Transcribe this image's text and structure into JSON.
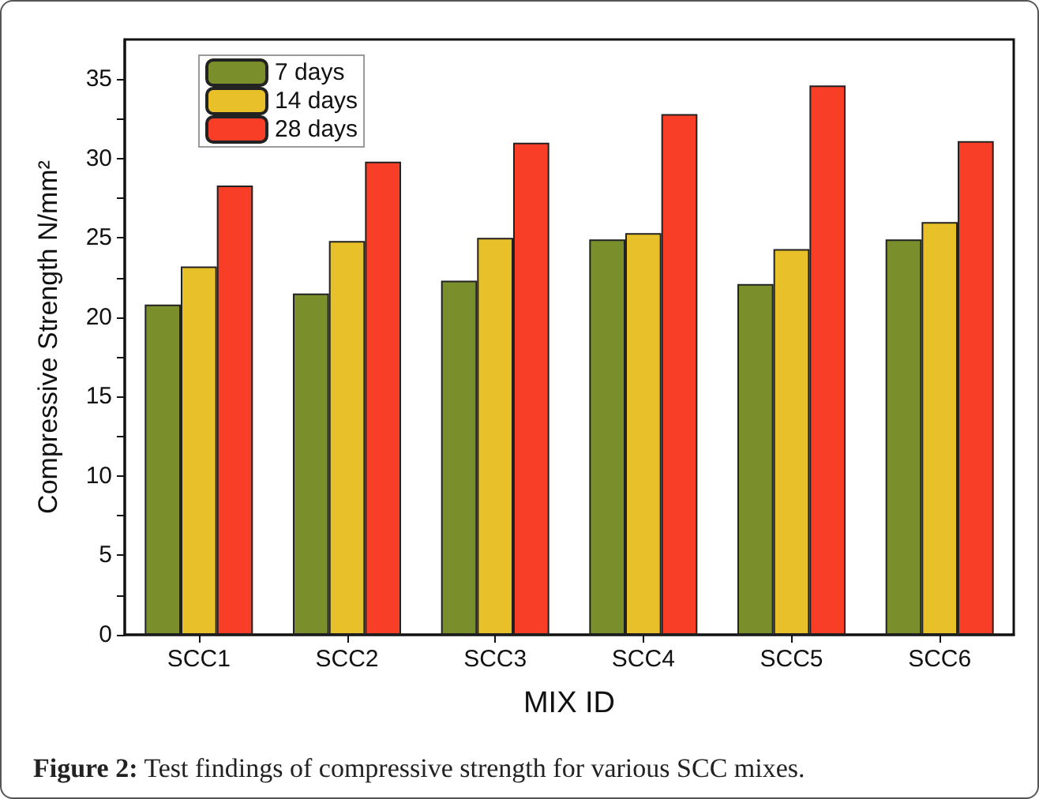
{
  "chart_data": {
    "type": "bar",
    "xlabel": "MIX ID",
    "ylabel": "Compressive Strength N/mm²",
    "categories": [
      "SCC1",
      "SCC2",
      "SCC3",
      "SCC4",
      "SCC5",
      "SCC6"
    ],
    "series": [
      {
        "name": "7 days",
        "color": "#7a8f2b",
        "values": [
          20.8,
          21.5,
          22.3,
          24.9,
          22.1,
          24.9
        ]
      },
      {
        "name": "14 days",
        "color": "#e8c02a",
        "values": [
          23.2,
          24.8,
          25.0,
          25.3,
          24.3,
          26.0
        ]
      },
      {
        "name": "28 days",
        "color": "#f93e27",
        "values": [
          28.3,
          29.8,
          31.0,
          32.8,
          34.6,
          31.1
        ]
      }
    ],
    "ylim": [
      0,
      37.5
    ],
    "yticks": [
      0,
      {
        "value": 2.5,
        "label": null
      },
      5,
      {
        "value": 7.5,
        "label": null
      },
      10,
      {
        "value": 12.5,
        "label": null
      },
      15,
      {
        "value": 17.5,
        "label": null
      },
      20,
      {
        "value": 22.5,
        "label": null
      },
      25,
      {
        "value": 27.5,
        "label": null
      },
      30,
      {
        "value": 32.5,
        "label": null
      },
      35
    ],
    "grid": false,
    "legend": "top left",
    "annotations": [
      "Figure 2: Test findings of compressive strength for various SCC mixes."
    ]
  }
}
